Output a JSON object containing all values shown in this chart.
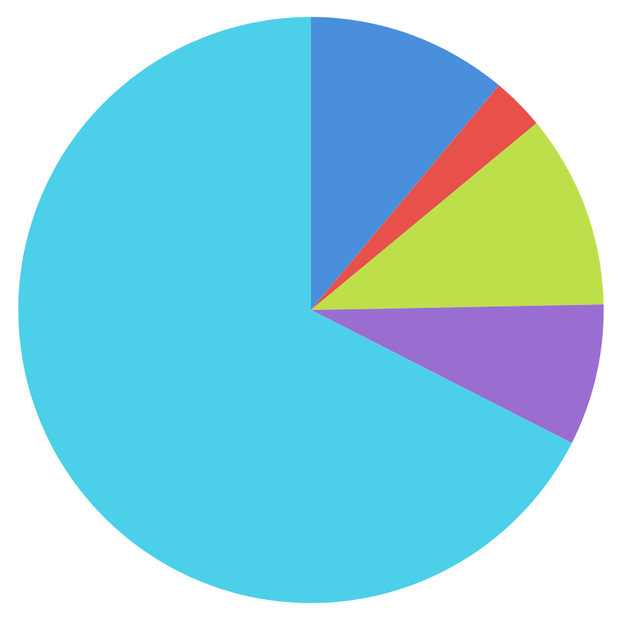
{
  "chart_data": {
    "type": "pie",
    "categories": [
      null,
      null,
      null,
      null,
      null
    ],
    "values": [
      11.1,
      2.9,
      10.7,
      7.8,
      67.5
    ],
    "colors": [
      "#4a8fdc",
      "#e8504a",
      "#bde04a",
      "#9a6ed0",
      "#4ccfe8"
    ]
  }
}
